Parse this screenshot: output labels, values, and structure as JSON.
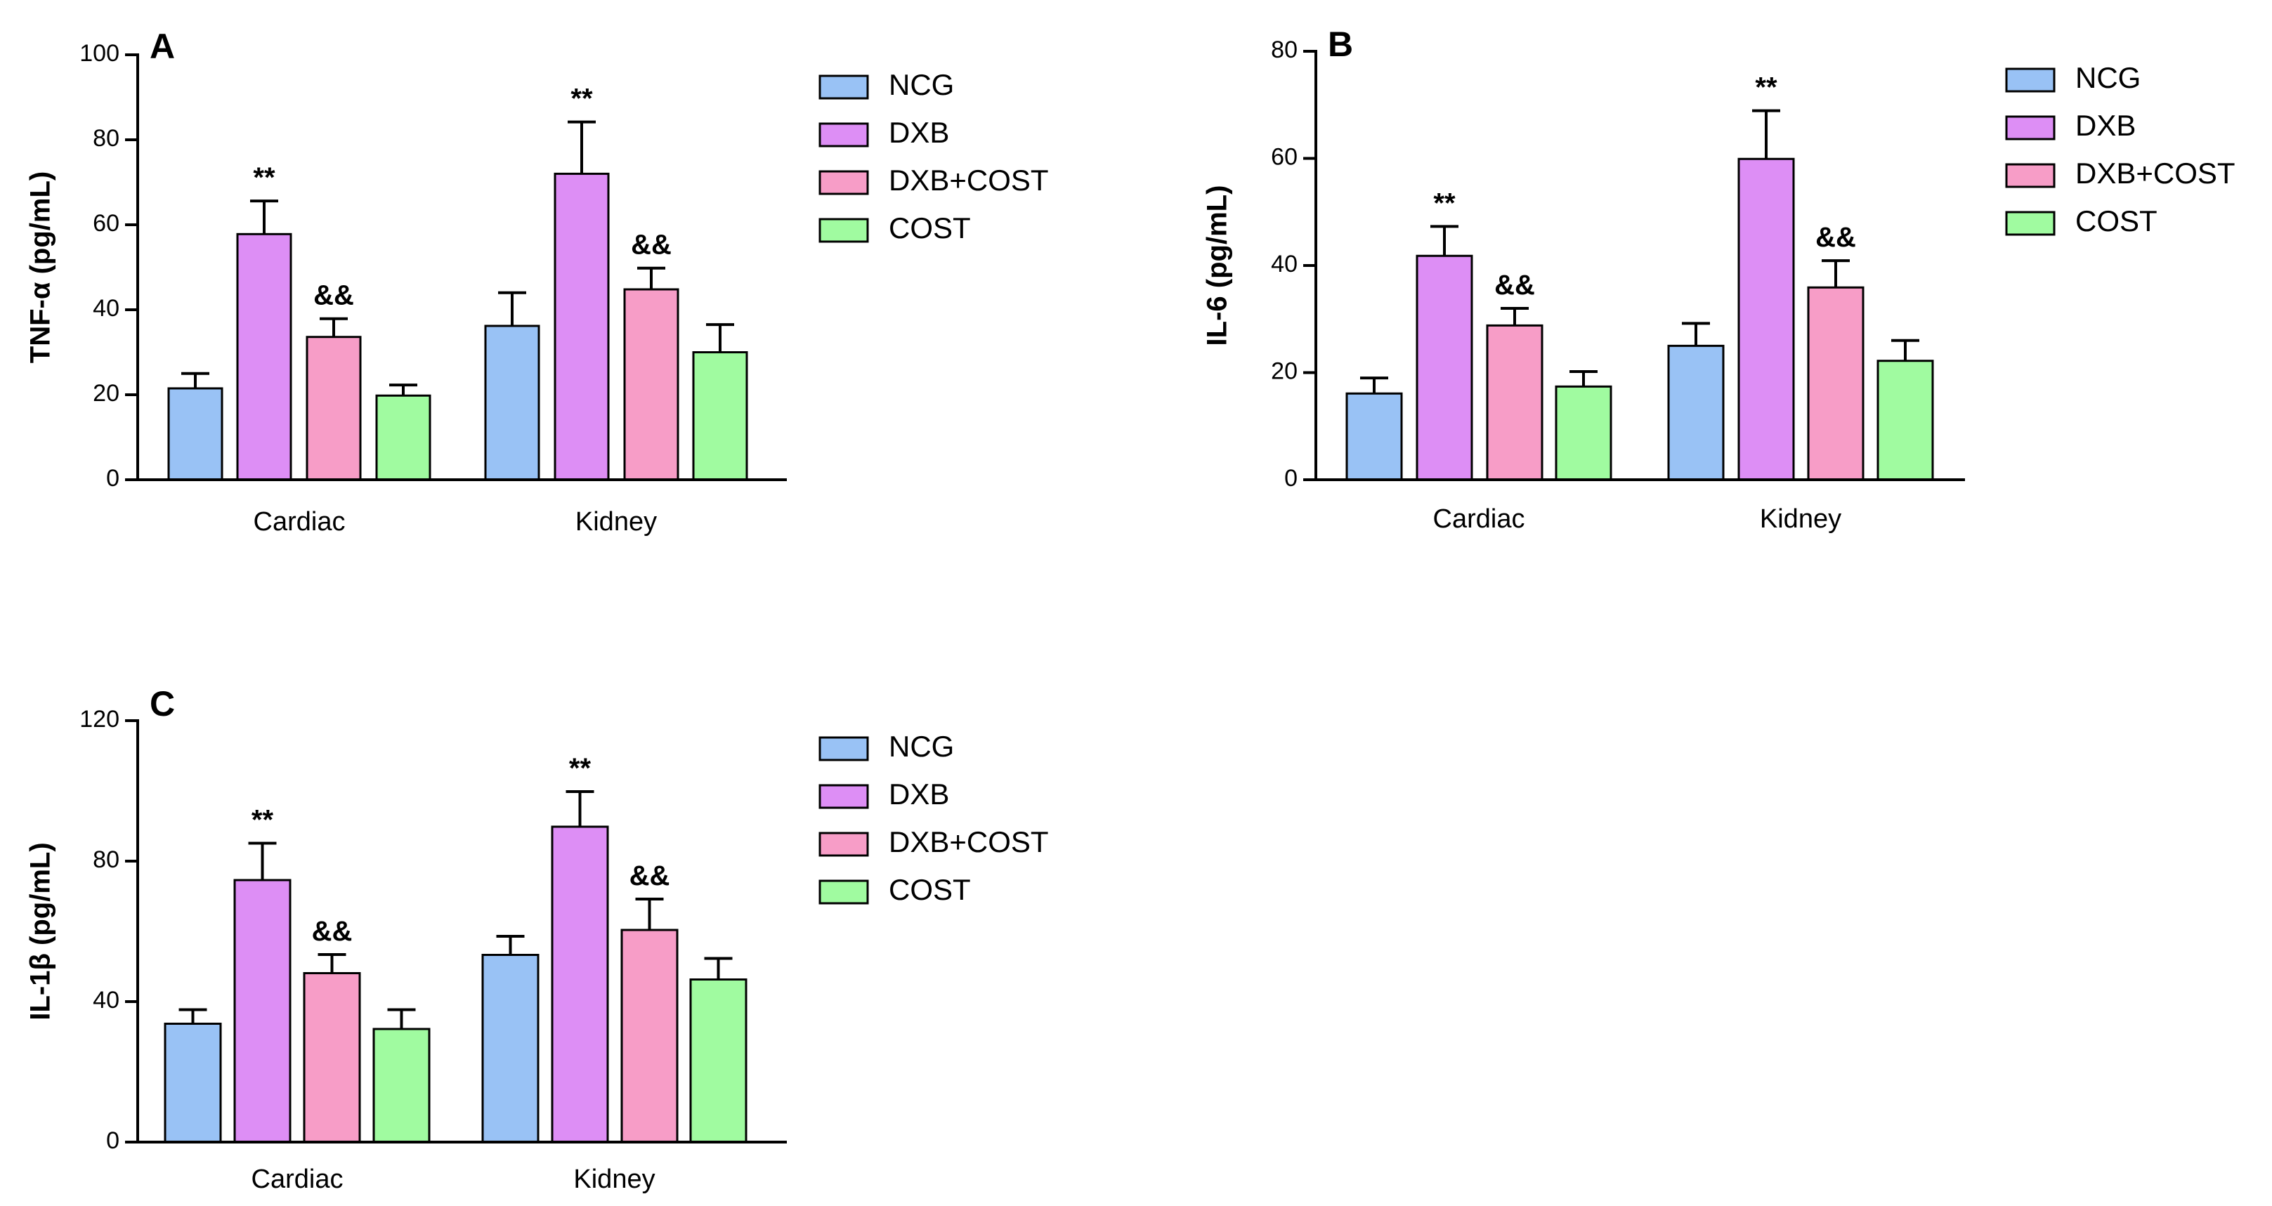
{
  "colors": {
    "NCG": "#99c2f5",
    "DXB": "#dd8ef5",
    "DXB+COST": "#f79dc7",
    "COST": "#a0fba0",
    "outline": "#000000"
  },
  "legend_labels": [
    "NCG",
    "DXB",
    "DXB+COST",
    "COST"
  ],
  "chart_data": [
    {
      "type": "bar",
      "panel": "A",
      "title": "",
      "xlabel": "",
      "ylabel": "TNF-α (pg/mL)",
      "ylim": [
        0,
        100
      ],
      "yticks": [
        "0",
        "20",
        "40",
        "60",
        "80",
        "100"
      ],
      "yticks_values": [
        0,
        20,
        40,
        60,
        80,
        100
      ],
      "categories": [
        "Cardiac",
        "Kidney"
      ],
      "series": [
        {
          "name": "NCG",
          "values": [
            21.5,
            36.2
          ],
          "errors": [
            3.5,
            7.8
          ],
          "marks": [
            "",
            ""
          ]
        },
        {
          "name": "DXB",
          "values": [
            57.8,
            72.0
          ],
          "errors": [
            7.8,
            12.2
          ],
          "marks": [
            "**",
            "**"
          ]
        },
        {
          "name": "DXB+COST",
          "values": [
            33.6,
            44.8
          ],
          "errors": [
            4.3,
            5.0
          ],
          "marks": [
            "&&",
            "&&"
          ]
        },
        {
          "name": "COST",
          "values": [
            19.8,
            30.0
          ],
          "errors": [
            2.5,
            6.5
          ],
          "marks": [
            "",
            ""
          ]
        }
      ],
      "legend": "right"
    },
    {
      "type": "bar",
      "panel": "B",
      "title": "",
      "xlabel": "",
      "ylabel": "IL-6 (pg/mL)",
      "ylim": [
        0,
        80
      ],
      "yticks": [
        "0",
        "20",
        "40",
        "60",
        "80"
      ],
      "yticks_values": [
        0,
        20,
        40,
        60,
        80
      ],
      "categories": [
        "Cardiac",
        "Kidney"
      ],
      "series": [
        {
          "name": "NCG",
          "values": [
            16.1,
            25.0
          ],
          "errors": [
            2.9,
            4.2
          ],
          "marks": [
            "",
            ""
          ]
        },
        {
          "name": "DXB",
          "values": [
            41.8,
            59.9
          ],
          "errors": [
            5.5,
            9.0
          ],
          "marks": [
            "**",
            "**"
          ]
        },
        {
          "name": "DXB+COST",
          "values": [
            28.8,
            35.9
          ],
          "errors": [
            3.2,
            5.0
          ],
          "marks": [
            "&&",
            "&&"
          ]
        },
        {
          "name": "COST",
          "values": [
            17.4,
            22.2
          ],
          "errors": [
            2.8,
            3.8
          ],
          "marks": [
            "",
            ""
          ]
        }
      ],
      "legend": "right"
    },
    {
      "type": "bar",
      "panel": "C",
      "title": "",
      "xlabel": "",
      "ylabel": "IL-1β (pg/mL)",
      "ylim": [
        0,
        120
      ],
      "yticks": [
        "0",
        "40",
        "80",
        "120"
      ],
      "yticks_values": [
        0,
        40,
        80,
        120
      ],
      "categories": [
        "Cardiac",
        "Kidney"
      ],
      "series": [
        {
          "name": "NCG",
          "values": [
            33.7,
            53.3
          ],
          "errors": [
            4.0,
            5.3
          ],
          "marks": [
            "",
            ""
          ]
        },
        {
          "name": "DXB",
          "values": [
            74.6,
            89.8
          ],
          "errors": [
            10.5,
            10.0
          ],
          "marks": [
            "**",
            "**"
          ]
        },
        {
          "name": "DXB+COST",
          "values": [
            48.1,
            60.4
          ],
          "errors": [
            5.3,
            8.8
          ],
          "marks": [
            "&&",
            "&&"
          ]
        },
        {
          "name": "COST",
          "values": [
            32.2,
            46.3
          ],
          "errors": [
            5.5,
            6.0
          ],
          "marks": [
            "",
            ""
          ]
        }
      ],
      "legend": "right"
    }
  ]
}
